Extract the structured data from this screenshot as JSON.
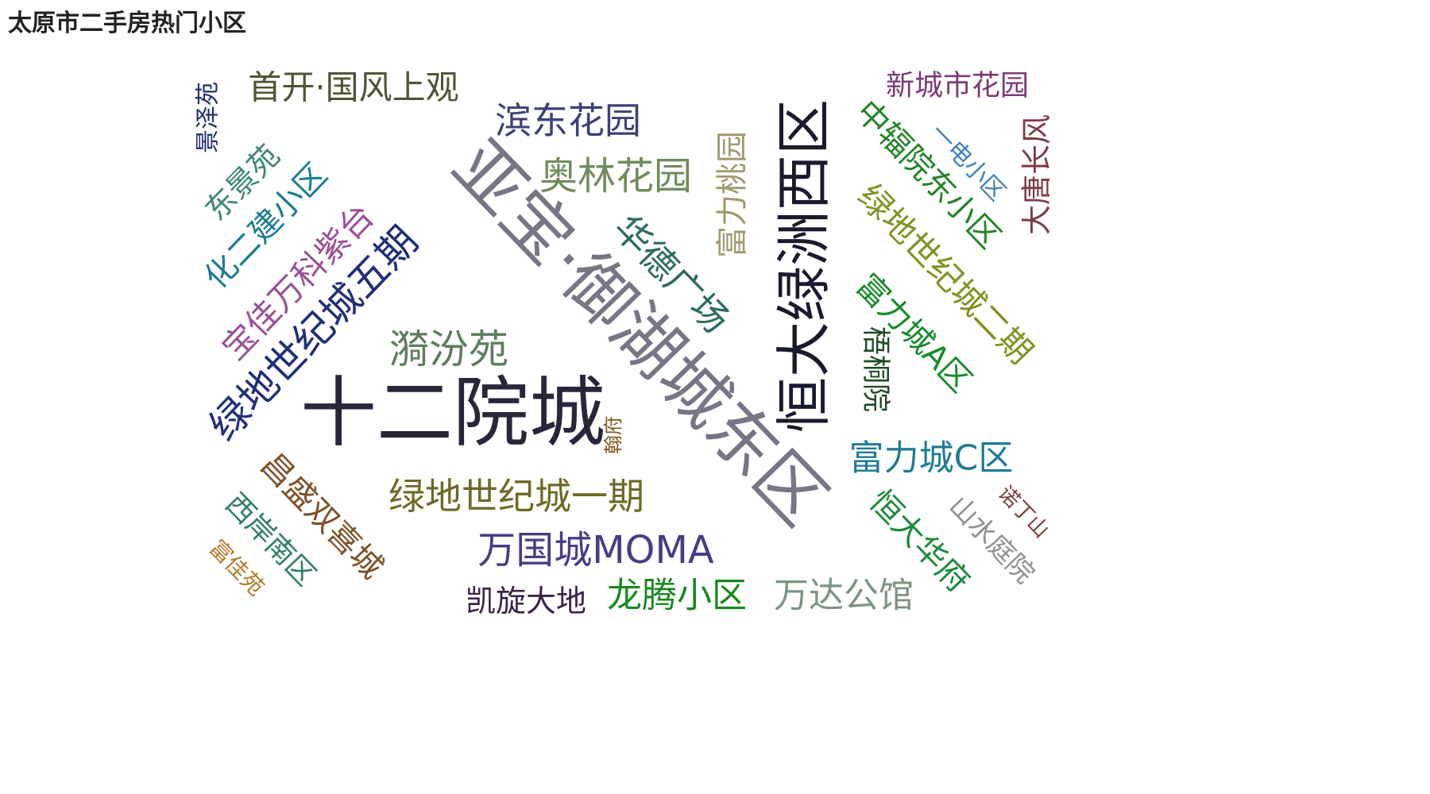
{
  "title": "太原市二手房热门小区",
  "chart_data": {
    "type": "wordcloud",
    "title": "太原市二手房热门小区",
    "words": [
      {
        "text": "亚宝·御湖城东区",
        "color": "#797486"
      },
      {
        "text": "十二院城",
        "color": "#28263a"
      },
      {
        "text": "恒大绿洲西区",
        "color": "#1b1b2f"
      },
      {
        "text": "绿地世纪城五期",
        "color": "#1f2f78"
      },
      {
        "text": "奥林花园",
        "color": "#6f8d5c"
      },
      {
        "text": "滨东花园",
        "color": "#3c4176"
      },
      {
        "text": "首开·国风上观",
        "color": "#4d5433"
      },
      {
        "text": "宝佳万科紫台",
        "color": "#9b5098"
      },
      {
        "text": "华德广场",
        "color": "#2c6c62"
      },
      {
        "text": "富力桃园",
        "color": "#9f9a6f"
      },
      {
        "text": "漪汾苑",
        "color": "#5e7e5d"
      },
      {
        "text": "绿地世纪城一期",
        "color": "#6f6924"
      },
      {
        "text": "万国城MOMA",
        "color": "#4a3b86"
      },
      {
        "text": "中辐院东小区",
        "color": "#218626"
      },
      {
        "text": "绿地世纪城二期",
        "color": "#7e9421"
      },
      {
        "text": "富力城A区",
        "color": "#168c27"
      },
      {
        "text": "富力城C区",
        "color": "#1e7b95"
      },
      {
        "text": "化二建小区",
        "color": "#1b7d93"
      },
      {
        "text": "东景苑",
        "color": "#3d8678"
      },
      {
        "text": "景泽苑",
        "color": "#1e2d76"
      },
      {
        "text": "昌盛双喜城",
        "color": "#7d5128"
      },
      {
        "text": "西岸南区",
        "color": "#317e6a"
      },
      {
        "text": "龙腾小区",
        "color": "#19881e"
      },
      {
        "text": "万达公馆",
        "color": "#7c9482"
      },
      {
        "text": "凯旋大地",
        "color": "#3b1f4b"
      },
      {
        "text": "恒大华府",
        "color": "#1a8b3a"
      },
      {
        "text": "山水庭院",
        "color": "#909090"
      },
      {
        "text": "新城市花园",
        "color": "#7b3977"
      },
      {
        "text": "一电小区",
        "color": "#3b82b9"
      },
      {
        "text": "大唐长风",
        "color": "#7e3c47"
      },
      {
        "text": "梧桐院",
        "color": "#1f4b24"
      },
      {
        "text": "翰府",
        "color": "#7d5a1e"
      },
      {
        "text": "诺丁山",
        "color": "#7d3c3c"
      },
      {
        "text": "富佳苑",
        "color": "#b6792a"
      }
    ]
  }
}
